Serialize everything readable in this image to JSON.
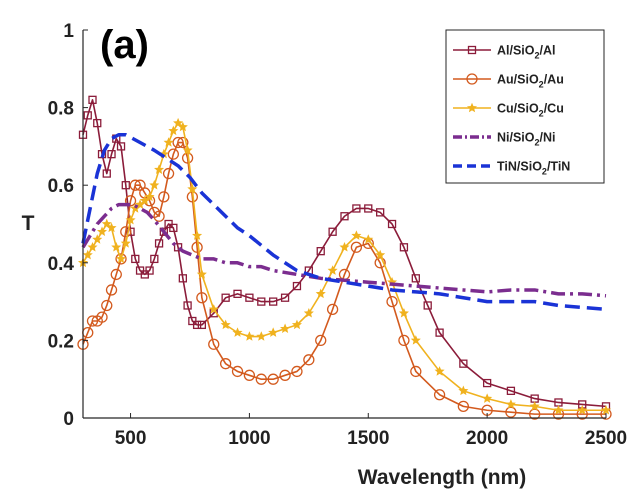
{
  "chart_data": {
    "type": "line",
    "panel_label": "(a)",
    "xlabel": "Wavelength (nm)",
    "ylabel": "T",
    "xlim": [
      300,
      2500
    ],
    "ylim": [
      0,
      1
    ],
    "xticks": [
      500,
      1000,
      1500,
      2000,
      2500
    ],
    "yticks": [
      0,
      0.2,
      0.4,
      0.6,
      0.8,
      1
    ],
    "ytick_labels": [
      "0",
      "0.2",
      "0.4",
      "0.6",
      "0.8",
      "1"
    ],
    "grid": false,
    "legend_position": "top-right",
    "series": [
      {
        "name": "Al/SiO₂/Al",
        "label_main": "Al/SiO",
        "label_sub": "2",
        "label_tail": "/Al",
        "color": "#8b1c3a",
        "marker": "square",
        "dash": "none",
        "x": [
          300,
          320,
          340,
          360,
          380,
          400,
          420,
          440,
          460,
          480,
          500,
          520,
          540,
          560,
          580,
          600,
          620,
          640,
          660,
          680,
          700,
          720,
          740,
          760,
          780,
          800,
          850,
          900,
          950,
          1000,
          1050,
          1100,
          1150,
          1200,
          1250,
          1300,
          1350,
          1400,
          1450,
          1500,
          1550,
          1600,
          1650,
          1700,
          1750,
          1800,
          1900,
          2000,
          2100,
          2200,
          2300,
          2400,
          2500
        ],
        "y": [
          0.73,
          0.78,
          0.82,
          0.76,
          0.68,
          0.63,
          0.68,
          0.72,
          0.7,
          0.6,
          0.48,
          0.41,
          0.38,
          0.37,
          0.38,
          0.41,
          0.45,
          0.48,
          0.5,
          0.49,
          0.44,
          0.36,
          0.29,
          0.25,
          0.24,
          0.24,
          0.27,
          0.31,
          0.32,
          0.31,
          0.3,
          0.3,
          0.31,
          0.34,
          0.38,
          0.43,
          0.48,
          0.52,
          0.54,
          0.54,
          0.53,
          0.5,
          0.44,
          0.36,
          0.29,
          0.22,
          0.14,
          0.09,
          0.07,
          0.05,
          0.04,
          0.035,
          0.03
        ]
      },
      {
        "name": "Au/SiO₂/Au",
        "label_main": "Au/SiO",
        "label_sub": "2",
        "label_tail": "/Au",
        "color": "#d35a1e",
        "marker": "circle",
        "dash": "none",
        "x": [
          300,
          320,
          340,
          360,
          380,
          400,
          420,
          440,
          460,
          480,
          500,
          520,
          540,
          560,
          580,
          600,
          620,
          640,
          660,
          680,
          700,
          720,
          740,
          760,
          780,
          800,
          850,
          900,
          950,
          1000,
          1050,
          1100,
          1150,
          1200,
          1250,
          1300,
          1350,
          1400,
          1450,
          1500,
          1550,
          1600,
          1650,
          1700,
          1800,
          1900,
          2000,
          2100,
          2200,
          2300,
          2400,
          2500
        ],
        "y": [
          0.19,
          0.22,
          0.25,
          0.25,
          0.26,
          0.29,
          0.33,
          0.37,
          0.41,
          0.48,
          0.56,
          0.6,
          0.6,
          0.58,
          0.56,
          0.53,
          0.52,
          0.57,
          0.63,
          0.68,
          0.71,
          0.71,
          0.67,
          0.57,
          0.44,
          0.31,
          0.19,
          0.14,
          0.12,
          0.11,
          0.1,
          0.1,
          0.11,
          0.12,
          0.15,
          0.2,
          0.28,
          0.37,
          0.44,
          0.45,
          0.4,
          0.3,
          0.2,
          0.12,
          0.06,
          0.03,
          0.02,
          0.015,
          0.01,
          0.01,
          0.01,
          0.01
        ]
      },
      {
        "name": "Cu/SiO₂/Cu",
        "label_main": "Cu/SiO",
        "label_sub": "2",
        "label_tail": "/Cu",
        "color": "#f0b21f",
        "marker": "star",
        "dash": "none",
        "x": [
          300,
          320,
          340,
          360,
          380,
          400,
          420,
          440,
          460,
          480,
          500,
          520,
          540,
          560,
          580,
          600,
          620,
          640,
          660,
          680,
          700,
          720,
          740,
          760,
          780,
          800,
          850,
          900,
          950,
          1000,
          1050,
          1100,
          1150,
          1200,
          1250,
          1300,
          1350,
          1400,
          1450,
          1500,
          1550,
          1600,
          1650,
          1700,
          1800,
          1900,
          2000,
          2100,
          2200,
          2300,
          2400,
          2500
        ],
        "y": [
          0.4,
          0.42,
          0.44,
          0.46,
          0.48,
          0.5,
          0.49,
          0.44,
          0.41,
          0.45,
          0.51,
          0.54,
          0.55,
          0.56,
          0.57,
          0.6,
          0.64,
          0.68,
          0.71,
          0.74,
          0.76,
          0.75,
          0.69,
          0.59,
          0.47,
          0.37,
          0.28,
          0.24,
          0.22,
          0.21,
          0.21,
          0.22,
          0.23,
          0.24,
          0.27,
          0.32,
          0.38,
          0.44,
          0.47,
          0.46,
          0.42,
          0.35,
          0.27,
          0.2,
          0.12,
          0.07,
          0.05,
          0.035,
          0.03,
          0.02,
          0.02,
          0.02
        ]
      },
      {
        "name": "Ni/SiO₂/Ni",
        "label_main": "Ni/SiO",
        "label_sub": "2",
        "label_tail": "/Ni",
        "color": "#7b2d8f",
        "marker": "none",
        "dash": "dashdot",
        "x": [
          300,
          330,
          360,
          390,
          420,
          450,
          480,
          510,
          540,
          570,
          600,
          640,
          680,
          720,
          760,
          800,
          850,
          900,
          950,
          1000,
          1050,
          1100,
          1200,
          1300,
          1400,
          1500,
          1600,
          1700,
          1800,
          1900,
          2000,
          2100,
          2200,
          2300,
          2400,
          2500
        ],
        "y": [
          0.44,
          0.47,
          0.5,
          0.52,
          0.54,
          0.55,
          0.55,
          0.55,
          0.54,
          0.53,
          0.51,
          0.48,
          0.45,
          0.43,
          0.42,
          0.41,
          0.41,
          0.4,
          0.4,
          0.39,
          0.39,
          0.38,
          0.37,
          0.36,
          0.355,
          0.35,
          0.345,
          0.34,
          0.335,
          0.33,
          0.325,
          0.33,
          0.33,
          0.32,
          0.32,
          0.315
        ]
      },
      {
        "name": "TiN/SiO₂/TiN",
        "label_main": "TiN/SiO",
        "label_sub": "2",
        "label_tail": "/TiN",
        "color": "#1a33d6",
        "marker": "none",
        "dash": "dashed",
        "x": [
          300,
          330,
          360,
          390,
          420,
          450,
          480,
          510,
          540,
          570,
          600,
          650,
          700,
          750,
          800,
          850,
          900,
          950,
          1000,
          1100,
          1200,
          1300,
          1400,
          1500,
          1600,
          1700,
          1800,
          1900,
          2000,
          2100,
          2200,
          2300,
          2400,
          2500
        ],
        "y": [
          0.45,
          0.54,
          0.63,
          0.69,
          0.72,
          0.73,
          0.73,
          0.72,
          0.71,
          0.7,
          0.69,
          0.67,
          0.65,
          0.62,
          0.58,
          0.55,
          0.52,
          0.49,
          0.47,
          0.42,
          0.38,
          0.36,
          0.35,
          0.34,
          0.33,
          0.325,
          0.32,
          0.31,
          0.3,
          0.3,
          0.3,
          0.29,
          0.285,
          0.28
        ]
      }
    ]
  }
}
